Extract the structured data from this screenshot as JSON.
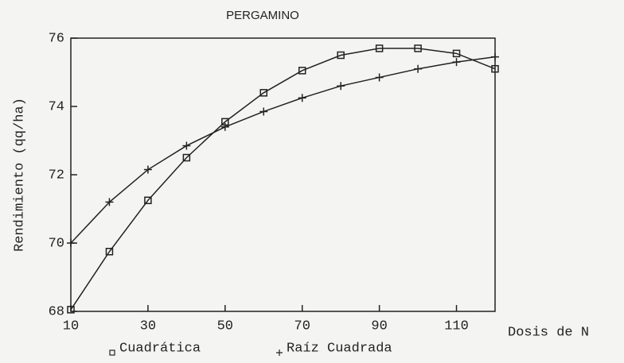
{
  "chart_data": {
    "type": "line",
    "title": "PERGAMINO",
    "xlabel": "Dosis de N",
    "ylabel": "Rendimiento (qq/ha)",
    "x": [
      10,
      20,
      30,
      40,
      50,
      60,
      70,
      80,
      90,
      100,
      110,
      120
    ],
    "series": [
      {
        "name": "Cuadrática",
        "color": "#222222",
        "marker": "square",
        "values": [
          68.05,
          69.75,
          71.25,
          72.5,
          73.55,
          74.4,
          75.05,
          75.5,
          75.7,
          75.7,
          75.55,
          75.1
        ]
      },
      {
        "name": "Raíz Cuadrada",
        "color": "#222222",
        "marker": "plus",
        "values": [
          70.0,
          71.2,
          72.15,
          72.85,
          73.4,
          73.85,
          74.25,
          74.6,
          74.85,
          75.1,
          75.3,
          75.45
        ]
      }
    ],
    "xlim": [
      10,
      120
    ],
    "xticks": [
      10,
      30,
      50,
      70,
      90,
      110
    ],
    "ylim": [
      68,
      76
    ],
    "yticks": [
      68,
      70,
      72,
      74,
      76
    ],
    "grid": false,
    "legend": "bottom"
  }
}
